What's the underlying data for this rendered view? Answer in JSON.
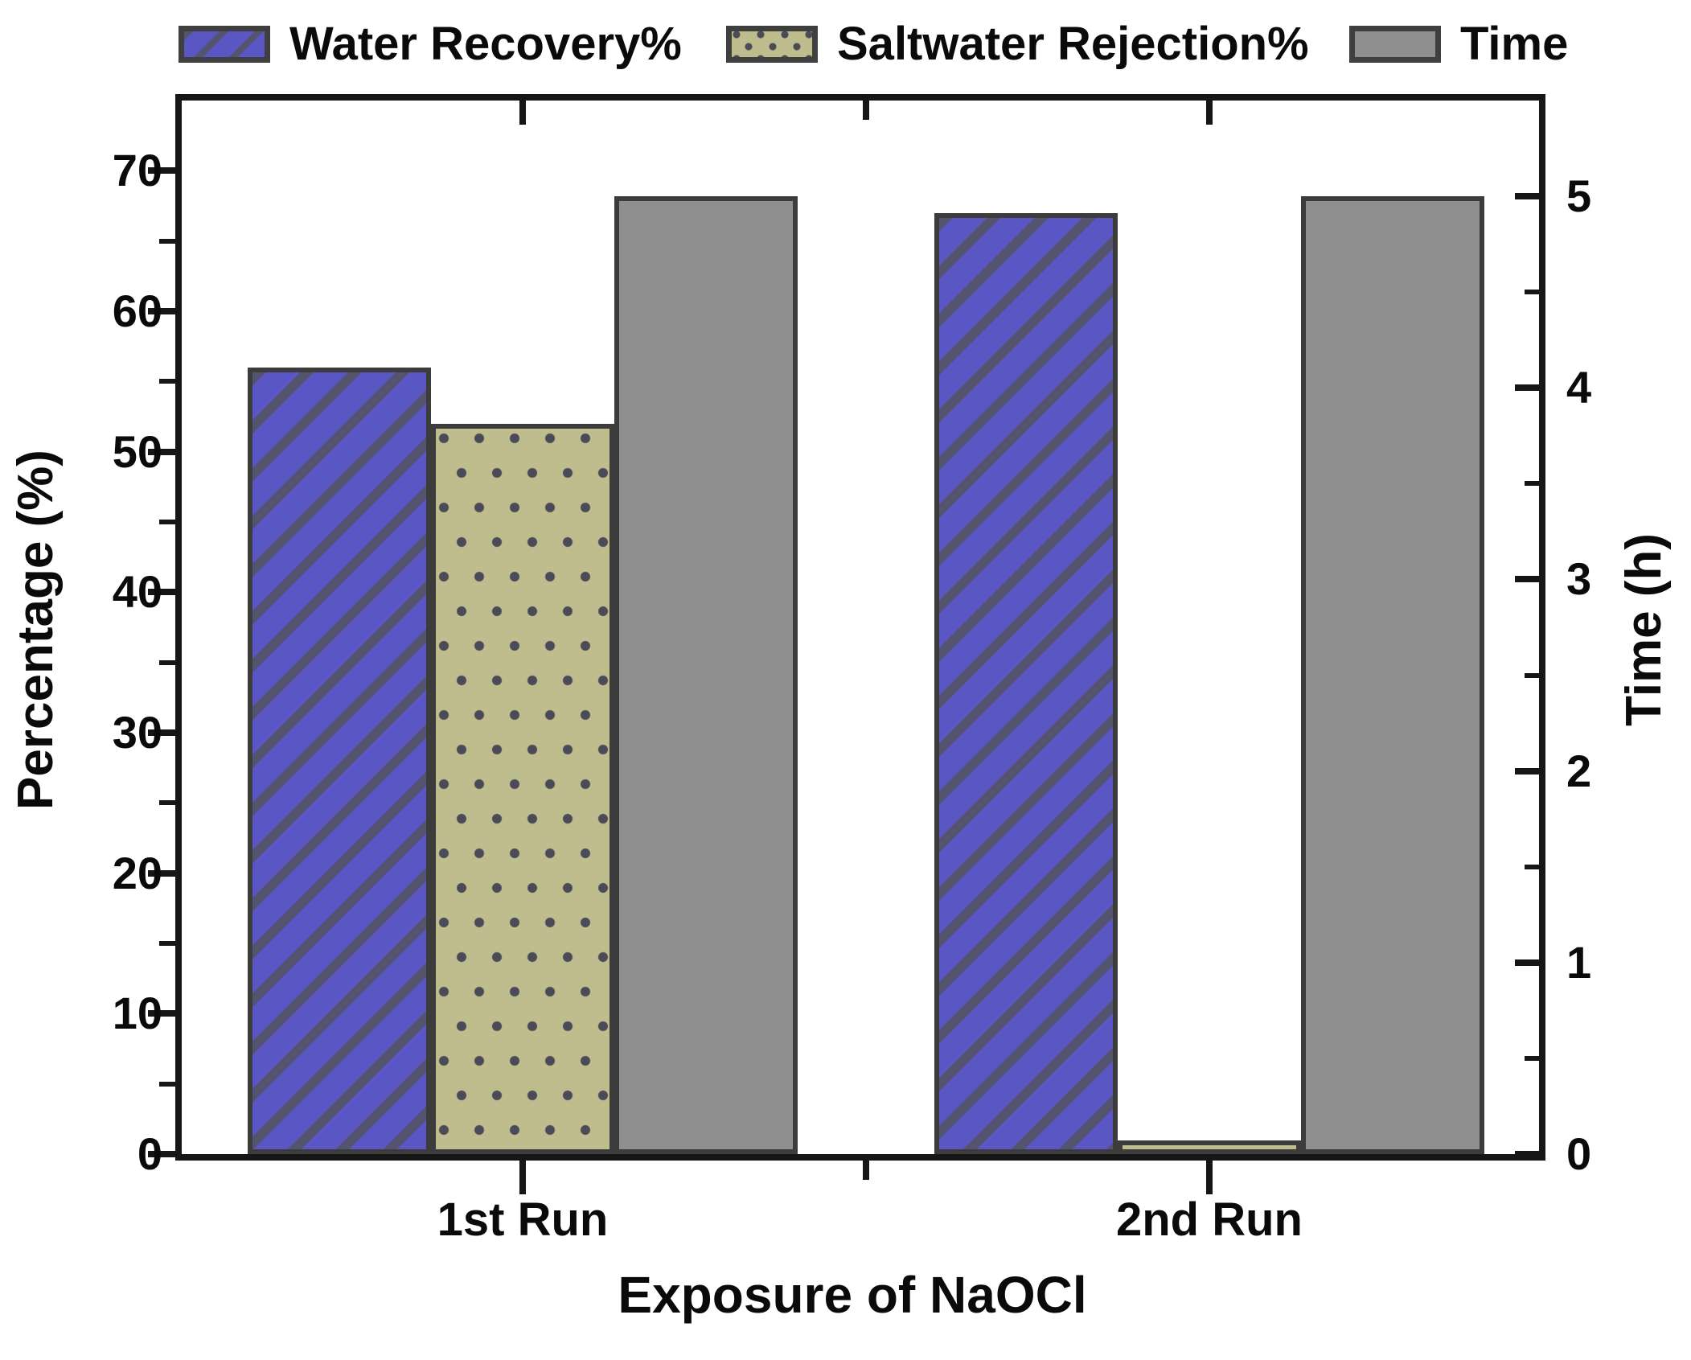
{
  "legend": {
    "items": [
      {
        "label": "Water Recovery%",
        "swatch": "diagonal-hatch"
      },
      {
        "label": "Saltwater Rejection%",
        "swatch": "dots"
      },
      {
        "label": "Time",
        "swatch": "solid"
      }
    ]
  },
  "axes": {
    "left": {
      "title": "Percentage (%)",
      "tick_labels": [
        "0",
        "10",
        "20",
        "30",
        "40",
        "50",
        "60",
        "70"
      ]
    },
    "right": {
      "title": "Time (h)",
      "tick_labels": [
        "0",
        "1",
        "2",
        "3",
        "4",
        "5"
      ]
    },
    "x": {
      "title": "Exposure of NaOCl",
      "categories": [
        "1st Run",
        "2nd Run"
      ]
    }
  },
  "chart_data": {
    "type": "bar",
    "categories": [
      "1st Run",
      "2nd Run"
    ],
    "series": [
      {
        "name": "Water Recovery%",
        "axis": "left",
        "values": [
          56,
          67
        ],
        "pattern": "diagonal-hatch"
      },
      {
        "name": "Saltwater Rejection%",
        "axis": "left",
        "values": [
          52,
          1
        ],
        "pattern": "dots"
      },
      {
        "name": "Time",
        "axis": "right",
        "values": [
          5.0,
          5.0
        ],
        "pattern": "solid"
      }
    ],
    "xlabel": "Exposure of NaOCl",
    "ylabel_left": "Percentage (%)",
    "ylabel_right": "Time (h)",
    "left_axis": {
      "range": [
        0,
        75
      ],
      "major_ticks": [
        0,
        10,
        20,
        30,
        40,
        50,
        60,
        70
      ],
      "minor_step": 5
    },
    "right_axis": {
      "range": [
        0,
        5.5
      ],
      "major_ticks": [
        0,
        1,
        2,
        3,
        4,
        5
      ],
      "minor_step": 0.5
    },
    "legend_position": "top",
    "grid": false
  },
  "colors": {
    "water_recovery_fill": "#5a56c4",
    "water_recovery_hatch": "#54546e",
    "saltwater_fill": "#bfbc8d",
    "saltwater_dot": "#4b4b58",
    "time_fill": "#8f8f8f",
    "bar_border": "#3c3c3c",
    "frame": "#161616",
    "text": "#0a0a0a"
  }
}
